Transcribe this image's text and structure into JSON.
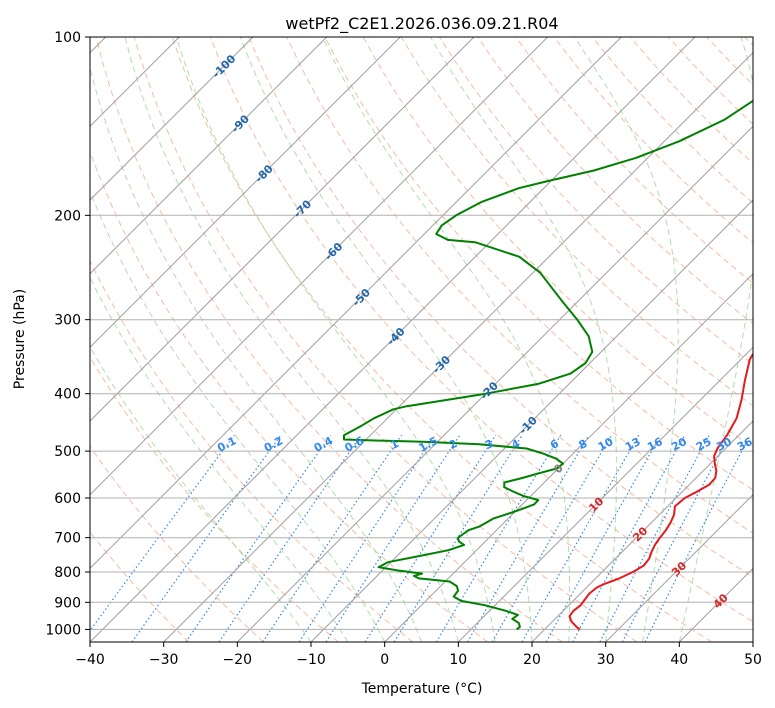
{
  "chart_data": {
    "type": "line",
    "title": "wetPf2_C2E1.2026.036.09.21.R04",
    "xlabel": "Temperature (°C)",
    "ylabel": "Pressure (hPa)",
    "xlim": [
      -40,
      50
    ],
    "ylim": [
      1050,
      100
    ],
    "y_scale": "log",
    "x_ticks": [
      "−40",
      "−30",
      "−20",
      "−10",
      "0",
      "10",
      "20",
      "30",
      "40",
      "50"
    ],
    "y_ticks": [
      "100",
      "200",
      "300",
      "400",
      "500",
      "600",
      "700",
      "800",
      "900",
      "1000"
    ],
    "grid": true,
    "series": [
      {
        "role": "temperature",
        "color": "#e41a1c",
        "points": [
          [
            1000,
            24.8
          ],
          [
            990,
            24.0
          ],
          [
            970,
            22.6
          ],
          [
            950,
            21.6
          ],
          [
            930,
            21.4
          ],
          [
            910,
            21.6
          ],
          [
            890,
            21.4
          ],
          [
            870,
            21.2
          ],
          [
            850,
            21.4
          ],
          [
            840,
            21.8
          ],
          [
            820,
            23.2
          ],
          [
            800,
            24.2
          ],
          [
            780,
            24.8
          ],
          [
            760,
            24.6
          ],
          [
            740,
            24.0
          ],
          [
            720,
            23.5
          ],
          [
            700,
            23.2
          ],
          [
            680,
            23.0
          ],
          [
            660,
            22.6
          ],
          [
            640,
            22.0
          ],
          [
            620,
            21.0
          ],
          [
            600,
            21.2
          ],
          [
            585,
            22.0
          ],
          [
            570,
            22.7
          ],
          [
            555,
            22.6
          ],
          [
            540,
            21.8
          ],
          [
            525,
            20.6
          ],
          [
            510,
            19.5
          ],
          [
            495,
            18.9
          ],
          [
            470,
            18.4
          ],
          [
            440,
            17.4
          ],
          [
            410,
            15.6
          ],
          [
            380,
            13.4
          ],
          [
            350,
            11.2
          ],
          [
            320,
            10.0
          ],
          [
            300,
            8.8
          ],
          [
            280,
            6.8
          ],
          [
            260,
            4.0
          ],
          [
            245,
            2.4
          ],
          [
            235,
            2.6
          ],
          [
            225,
            4.6
          ],
          [
            215,
            7.0
          ],
          [
            205,
            8.4
          ],
          [
            200,
            8.4
          ],
          [
            190,
            6.2
          ],
          [
            175,
            1.8
          ],
          [
            160,
            -2.6
          ],
          [
            145,
            -7.0
          ],
          [
            130,
            -11.5
          ],
          [
            120,
            -14.2
          ],
          [
            113,
            -14.8
          ],
          [
            107,
            -13.8
          ],
          [
            103,
            -12.4
          ],
          [
            100,
            -11.5
          ]
        ]
      },
      {
        "role": "dewpoint",
        "color": "#008000",
        "points": [
          [
            1000,
            16.2
          ],
          [
            990,
            16.3
          ],
          [
            975,
            15.6
          ],
          [
            960,
            14.2
          ],
          [
            945,
            14.4
          ],
          [
            930,
            12.2
          ],
          [
            910,
            8.6
          ],
          [
            895,
            4.8
          ],
          [
            880,
            3.2
          ],
          [
            860,
            3.0
          ],
          [
            845,
            2.2
          ],
          [
            830,
            0.6
          ],
          [
            820,
            -4.0
          ],
          [
            812,
            -5.0
          ],
          [
            805,
            -4.2
          ],
          [
            795,
            -8.0
          ],
          [
            785,
            -11.0
          ],
          [
            770,
            -10.4
          ],
          [
            750,
            -6.6
          ],
          [
            735,
            -3.8
          ],
          [
            720,
            -2.4
          ],
          [
            710,
            -3.6
          ],
          [
            700,
            -4.2
          ],
          [
            690,
            -4.0
          ],
          [
            680,
            -3.8
          ],
          [
            670,
            -2.8
          ],
          [
            650,
            -2.0
          ],
          [
            630,
            0.2
          ],
          [
            615,
            1.6
          ],
          [
            605,
            1.6
          ],
          [
            595,
            -1.0
          ],
          [
            585,
            -3.0
          ],
          [
            575,
            -4.8
          ],
          [
            565,
            -5.4
          ],
          [
            555,
            -3.6
          ],
          [
            545,
            -2.0
          ],
          [
            535,
            -0.2
          ],
          [
            525,
            0.0
          ],
          [
            515,
            -1.6
          ],
          [
            505,
            -4.0
          ],
          [
            495,
            -7.0
          ],
          [
            487,
            -14.0
          ],
          [
            482,
            -22.0
          ],
          [
            480,
            -28.0
          ],
          [
            478,
            -33.0
          ],
          [
            470,
            -33.6
          ],
          [
            455,
            -32.6
          ],
          [
            440,
            -31.8
          ],
          [
            425,
            -30.4
          ],
          [
            420,
            -29.0
          ],
          [
            400,
            -20.0
          ],
          [
            385,
            -14.2
          ],
          [
            370,
            -11.2
          ],
          [
            355,
            -10.6
          ],
          [
            340,
            -11.2
          ],
          [
            320,
            -13.8
          ],
          [
            300,
            -17.6
          ],
          [
            280,
            -22.0
          ],
          [
            265,
            -25.4
          ],
          [
            250,
            -29.0
          ],
          [
            235,
            -34.0
          ],
          [
            222,
            -42.0
          ],
          [
            220,
            -46.0
          ],
          [
            215,
            -48.4
          ],
          [
            208,
            -48.8
          ],
          [
            200,
            -48.2
          ],
          [
            190,
            -46.6
          ],
          [
            180,
            -43.4
          ],
          [
            175,
            -40.4
          ],
          [
            168,
            -35.6
          ],
          [
            160,
            -31.6
          ],
          [
            150,
            -28.0
          ],
          [
            138,
            -24.8
          ],
          [
            125,
            -23.0
          ],
          [
            118,
            -23.6
          ],
          [
            112,
            -25.4
          ],
          [
            106,
            -26.6
          ],
          [
            100,
            -26.4
          ]
        ]
      }
    ],
    "isotherm_labels": [
      "-100",
      "-90",
      "-80",
      "-70",
      "-60",
      "-50",
      "-40",
      "-30",
      "-20",
      "-10",
      "0",
      "10",
      "20",
      "30",
      "40"
    ],
    "mixing_ratio_labels": [
      "0.1",
      "0.2",
      "0.4",
      "0.6",
      "1",
      "1.5",
      "2",
      "3",
      "4",
      "6",
      "8",
      "10",
      "13",
      "16",
      "20",
      "25",
      "30",
      "36"
    ]
  },
  "colors": {
    "temperature": "#e41a1c",
    "dewpoint": "#008000",
    "dry_adiabat": "#f4a582",
    "moist_adiabat": "#a1d99b",
    "mixing_ratio": "#3288ee",
    "isotherm": "#9e9e9e",
    "grid": "#b0b0b0"
  }
}
